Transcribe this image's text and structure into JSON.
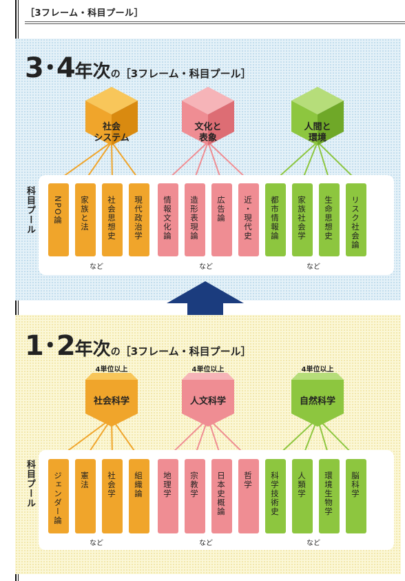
{
  "header": "［3フレーム・科目プール］",
  "upper": {
    "title_big": "3･4",
    "title_mid": "年次",
    "title_no": "の",
    "title_sub": "［3フレーム・科目プール］",
    "pool_label": "科目プール",
    "frames": [
      {
        "label": "社会\nシステム",
        "color": "#f0a52b",
        "subjects": [
          "NPO論",
          "家族と法",
          "社会思想史",
          "現代政治学"
        ],
        "nado": "など"
      },
      {
        "label": "文化と\n表象",
        "color": "#ef8d93",
        "subjects": [
          "情報文化論",
          "造形表現論",
          "広告論",
          "近・現代史"
        ],
        "nado": "など"
      },
      {
        "label": "人間と\n環境",
        "color": "#8dc63f",
        "subjects": [
          "都市情報論",
          "家族社会学",
          "生命思想史",
          "リスク社会論"
        ],
        "nado": "など"
      }
    ]
  },
  "lower": {
    "title_big": "1･2",
    "title_mid": "年次",
    "title_no": "の",
    "title_sub": "［3フレーム・科目プール］",
    "pool_label": "科目プール",
    "frames": [
      {
        "unit": "4単位以上",
        "label": "社会科学",
        "color": "#f0a52b",
        "subjects": [
          "ジェンダー論",
          "憲法",
          "社会学",
          "組織論"
        ],
        "nado": "など"
      },
      {
        "unit": "4単位以上",
        "label": "人文科学",
        "color": "#ef8d93",
        "subjects": [
          "地理学",
          "宗教学",
          "日本史概論",
          "哲学"
        ],
        "nado": "など"
      },
      {
        "unit": "4単位以上",
        "label": "自然科学",
        "color": "#8dc63f",
        "subjects": [
          "科学技術史",
          "人類学",
          "環境生物学",
          "脳科学"
        ],
        "nado": "など"
      }
    ]
  },
  "colors": {
    "orange": "#f0a52b",
    "pink": "#ef8d93",
    "green": "#8dc63f",
    "arrow": "#1b3c7e"
  }
}
